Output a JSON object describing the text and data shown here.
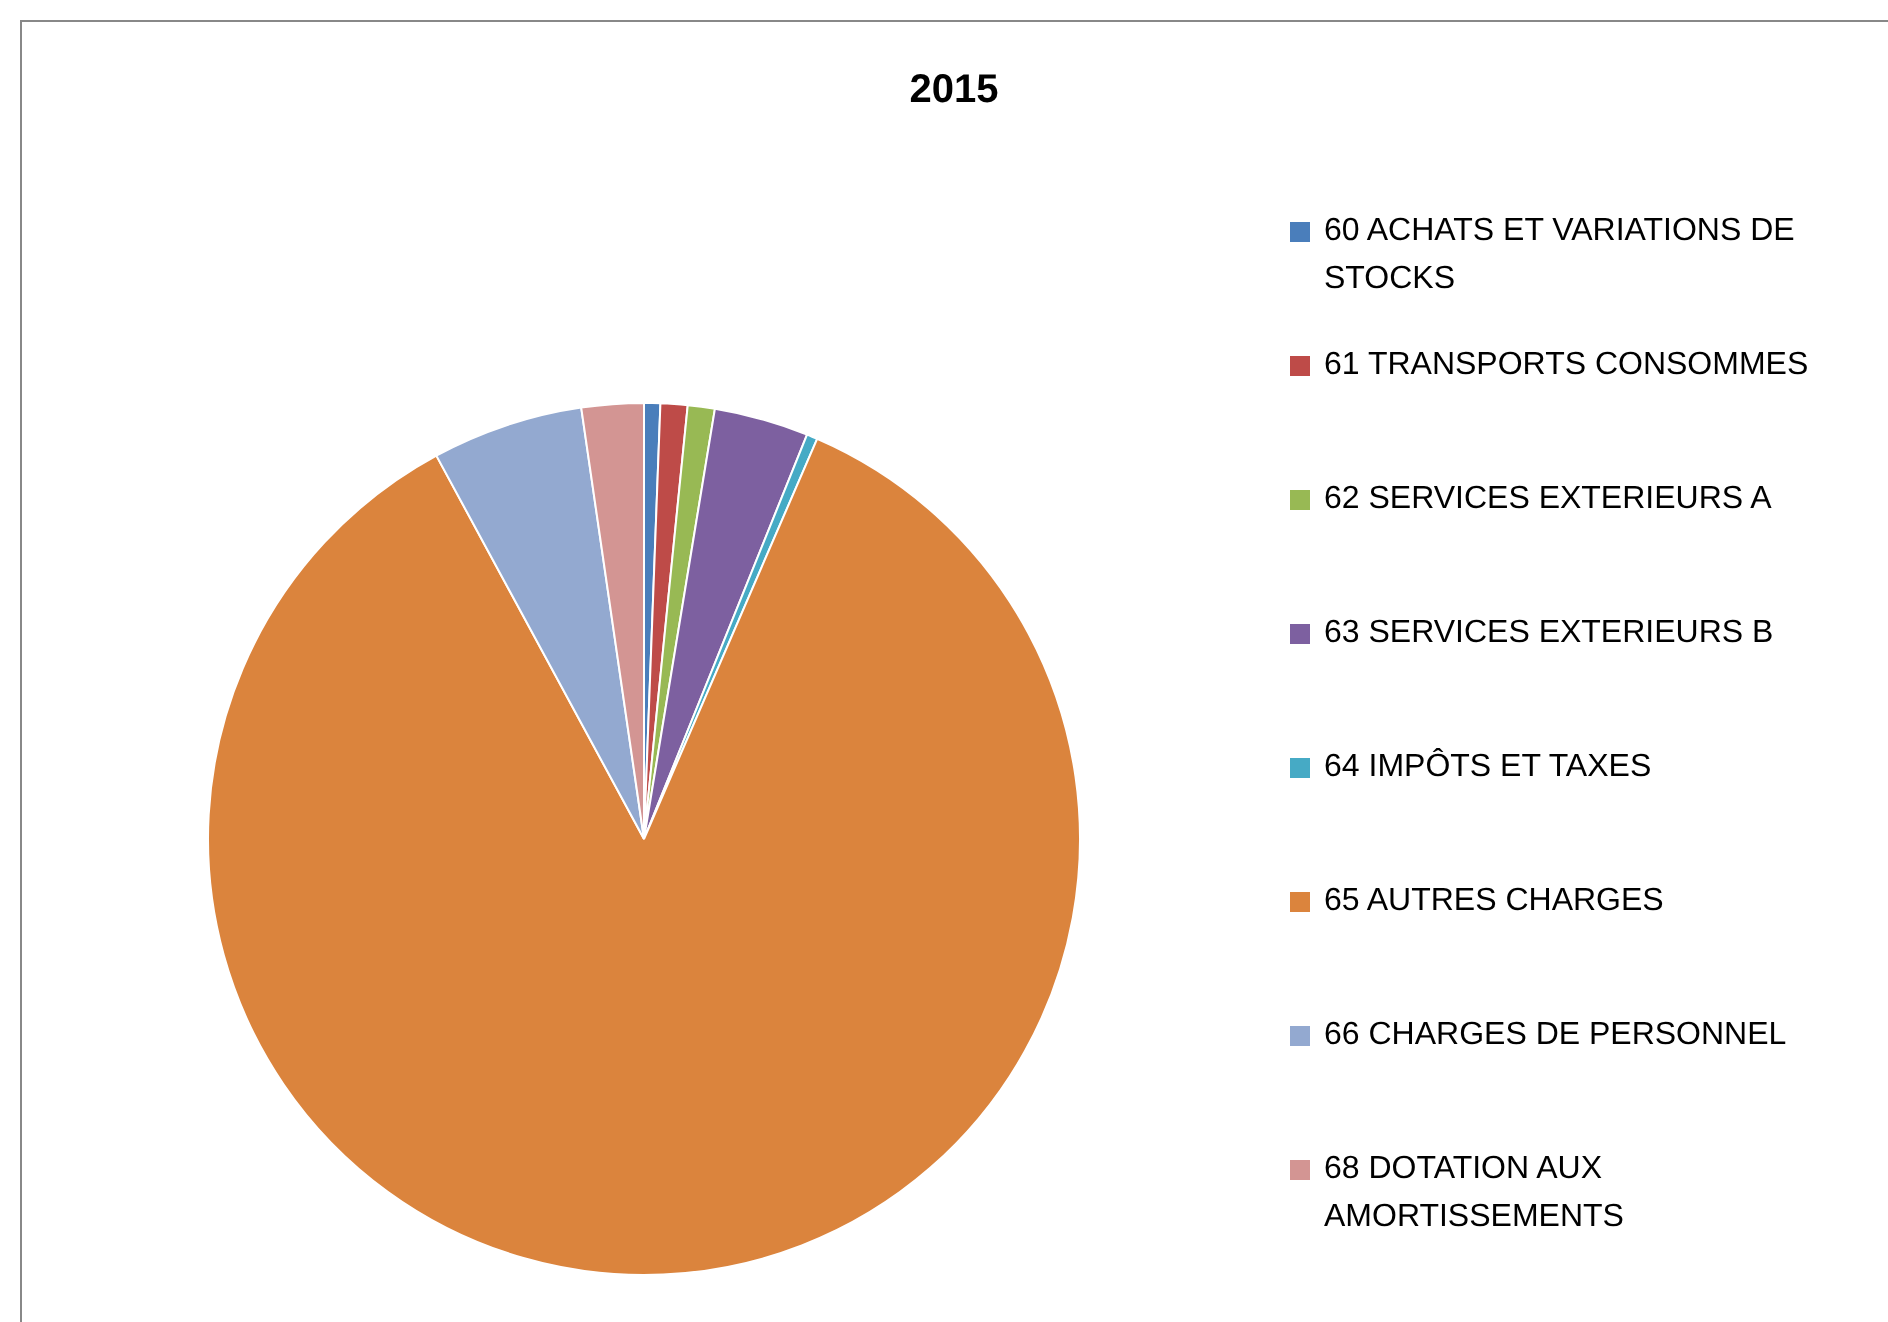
{
  "chart_data": {
    "type": "pie",
    "title": "2015",
    "categories": [
      "60 ACHATS ET VARIATIONS DE STOCKS",
      "61 TRANSPORTS CONSOMMES",
      "62 SERVICES EXTERIEURS A",
      "63 SERVICES EXTERIEURS B",
      "64 IMPÔTS ET TAXES",
      "65 AUTRES CHARGES",
      "66 CHARGES DE PERSONNEL",
      "68 DOTATION AUX AMORTISSEMENTS"
    ],
    "values": [
      0.6,
      1.0,
      1.0,
      3.5,
      0.4,
      85.6,
      5.6,
      2.3
    ],
    "colors": [
      "#4a7ebb",
      "#be4b48",
      "#98b954",
      "#7d60a0",
      "#46aac5",
      "#db843d",
      "#93a9d0",
      "#d39593"
    ],
    "legend": "right"
  }
}
